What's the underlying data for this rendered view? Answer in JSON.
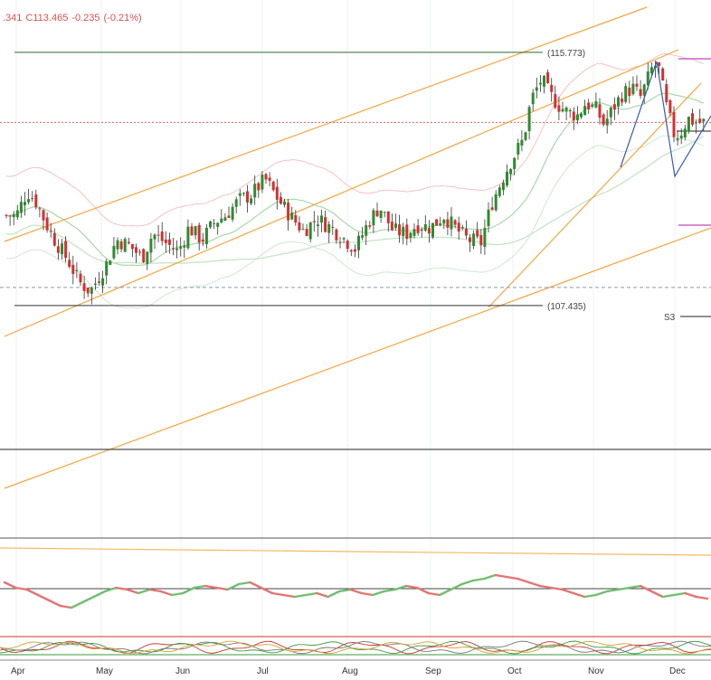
{
  "header": {
    "last_fragment": ".341",
    "close": "C113.465",
    "change": "-0.235",
    "change_pct": "(-0.21%)"
  },
  "chart_data": {
    "type": "candlestick",
    "x_axis_labels": [
      "Apr",
      "May",
      "Jun",
      "Jul",
      "Aug",
      "Sep",
      "Oct",
      "Nov",
      "Dec"
    ],
    "ylim": [
      103.5,
      117.2
    ],
    "annotations": {
      "high_label": "(115.773)",
      "high_value": 115.773,
      "low_label": "(107.435)",
      "low_value": 107.435,
      "pivot_label": "S3",
      "last_price": 113.465
    },
    "price_path": [
      {
        "date": "Apr 01",
        "close": 110.4
      },
      {
        "date": "Apr 05",
        "close": 111.2
      },
      {
        "date": "Apr 08",
        "close": 110.9
      },
      {
        "date": "Apr 12",
        "close": 110.1
      },
      {
        "date": "Apr 15",
        "close": 109.6
      },
      {
        "date": "Apr 20",
        "close": 108.9
      },
      {
        "date": "Apr 24",
        "close": 108.2
      },
      {
        "date": "Apr 28",
        "close": 107.9
      },
      {
        "date": "May 03",
        "close": 108.8
      },
      {
        "date": "May 07",
        "close": 109.6
      },
      {
        "date": "May 12",
        "close": 109.4
      },
      {
        "date": "May 17",
        "close": 109.0
      },
      {
        "date": "May 21",
        "close": 109.8
      },
      {
        "date": "May 26",
        "close": 109.5
      },
      {
        "date": "May 31",
        "close": 109.2
      },
      {
        "date": "Jun 04",
        "close": 110.0
      },
      {
        "date": "Jun 09",
        "close": 109.6
      },
      {
        "date": "Jun 14",
        "close": 110.2
      },
      {
        "date": "Jun 18",
        "close": 110.4
      },
      {
        "date": "Jun 23",
        "close": 110.9
      },
      {
        "date": "Jun 28",
        "close": 111.1
      },
      {
        "date": "Jul 02",
        "close": 111.6
      },
      {
        "date": "Jul 07",
        "close": 110.9
      },
      {
        "date": "Jul 12",
        "close": 110.3
      },
      {
        "date": "Jul 16",
        "close": 109.9
      },
      {
        "date": "Jul 21",
        "close": 110.3
      },
      {
        "date": "Jul 26",
        "close": 110.0
      },
      {
        "date": "Jul 30",
        "close": 109.7
      },
      {
        "date": "Aug 04",
        "close": 109.3
      },
      {
        "date": "Aug 09",
        "close": 110.2
      },
      {
        "date": "Aug 13",
        "close": 110.7
      },
      {
        "date": "Aug 18",
        "close": 109.9
      },
      {
        "date": "Aug 23",
        "close": 109.8
      },
      {
        "date": "Aug 27",
        "close": 110.1
      },
      {
        "date": "Sep 01",
        "close": 110.0
      },
      {
        "date": "Sep 06",
        "close": 110.4
      },
      {
        "date": "Sep 10",
        "close": 110.0
      },
      {
        "date": "Sep 15",
        "close": 109.6
      },
      {
        "date": "Sep 20",
        "close": 109.5
      },
      {
        "date": "Sep 24",
        "close": 110.8
      },
      {
        "date": "Sep 29",
        "close": 111.8
      },
      {
        "date": "Oct 01",
        "close": 112.3
      },
      {
        "date": "Oct 05",
        "close": 112.9
      },
      {
        "date": "Oct 08",
        "close": 114.2
      },
      {
        "date": "Oct 12",
        "close": 114.9
      },
      {
        "date": "Oct 15",
        "close": 114.4
      },
      {
        "date": "Oct 19",
        "close": 114.0
      },
      {
        "date": "Oct 22",
        "close": 113.8
      },
      {
        "date": "Oct 26",
        "close": 113.7
      },
      {
        "date": "Oct 29",
        "close": 114.1
      },
      {
        "date": "Nov 02",
        "close": 113.9
      },
      {
        "date": "Nov 05",
        "close": 113.4
      },
      {
        "date": "Nov 09",
        "close": 114.0
      },
      {
        "date": "Nov 12",
        "close": 114.4
      },
      {
        "date": "Nov 16",
        "close": 114.6
      },
      {
        "date": "Nov 19",
        "close": 114.3
      },
      {
        "date": "Nov 24",
        "close": 115.4
      },
      {
        "date": "Nov 26",
        "close": 115.2
      },
      {
        "date": "Nov 29",
        "close": 113.9
      },
      {
        "date": "Dec 01",
        "close": 113.0
      },
      {
        "date": "Dec 03",
        "close": 113.1
      },
      {
        "date": "Dec 06",
        "close": 113.6
      },
      {
        "date": "Dec 08",
        "close": 113.5
      },
      {
        "date": "Dec 10",
        "close": 113.465
      }
    ],
    "oscillator": {
      "values": [
        56,
        50,
        48,
        42,
        36,
        30,
        28,
        34,
        40,
        46,
        50,
        48,
        44,
        48,
        46,
        42,
        44,
        50,
        52,
        50,
        48,
        54,
        56,
        50,
        44,
        42,
        40,
        42,
        44,
        40,
        46,
        48,
        44,
        42,
        46,
        48,
        52,
        50,
        44,
        42,
        48,
        54,
        58,
        60,
        64,
        62,
        60,
        56,
        52,
        50,
        48,
        44,
        40,
        42,
        46,
        48,
        50,
        52,
        46,
        40,
        42,
        44,
        40,
        38
      ]
    }
  }
}
